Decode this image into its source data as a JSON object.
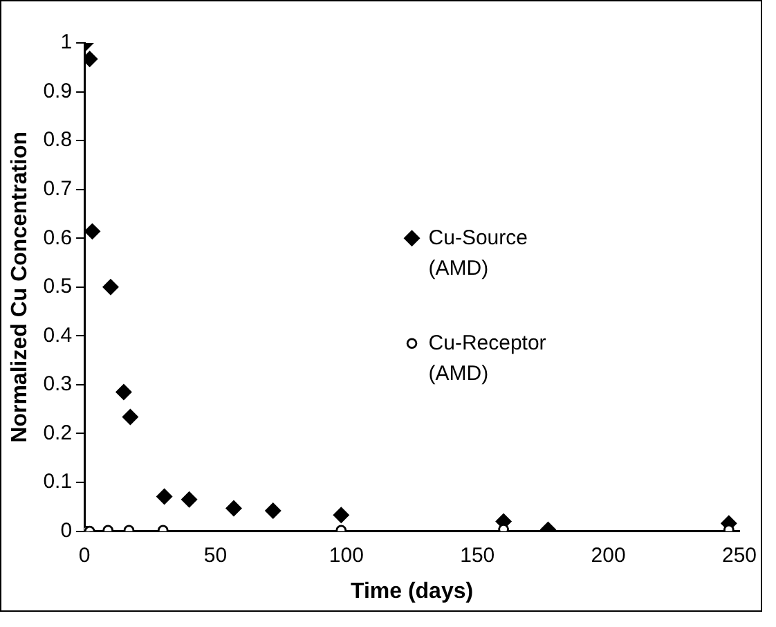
{
  "chart_data": {
    "type": "scatter",
    "xlabel": "Time (days)",
    "ylabel": "Normalized Cu Concentration",
    "xlim": [
      0,
      250
    ],
    "xticks": [
      0,
      50,
      100,
      150,
      200,
      250
    ],
    "ylim": [
      0,
      1
    ],
    "yticks": [
      0,
      0.1,
      0.2,
      0.3,
      0.4,
      0.5,
      0.6,
      0.7,
      0.8,
      0.9,
      1
    ],
    "grid": false,
    "legend": "right",
    "series": [
      {
        "name": "Cu-Source (AMD)",
        "color": "#000000",
        "marker": "diamond",
        "x": [
          0.5,
          2,
          3,
          10,
          15,
          17.5,
          30.5,
          40,
          57,
          72,
          98,
          160,
          177,
          246
        ],
        "values": [
          1.0,
          0.967,
          0.614,
          0.5,
          0.285,
          0.234,
          0.071,
          0.065,
          0.047,
          0.042,
          0.033,
          0.02,
          0.003,
          0.016
        ]
      },
      {
        "name": "Cu-Receptor (AMD)",
        "color": "#000000",
        "marker": "circle",
        "x": [
          0.5,
          2,
          9,
          17,
          30,
          98,
          160,
          177,
          246
        ],
        "values": [
          0,
          0,
          0.002,
          0.002,
          0.002,
          0.002,
          0.004,
          null,
          0.003
        ]
      }
    ]
  }
}
